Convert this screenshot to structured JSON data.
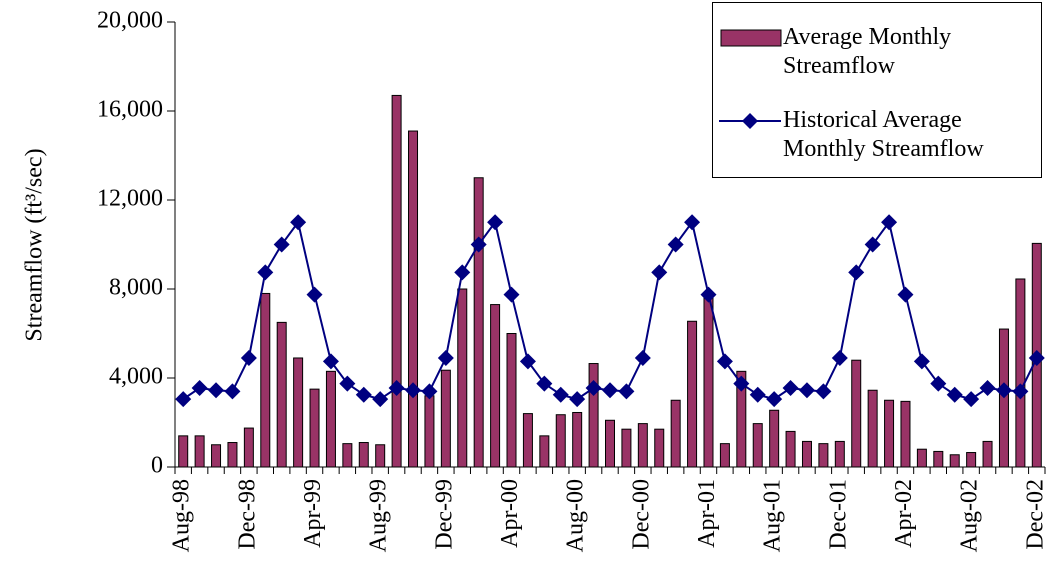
{
  "chart_data": {
    "type": "bar_line",
    "y_label": "Streamflow (ft³/sec)",
    "categories": [
      "Aug-98",
      null,
      null,
      null,
      "Dec-98",
      null,
      null,
      null,
      "Apr-99",
      null,
      null,
      null,
      "Aug-99",
      null,
      null,
      null,
      "Dec-99",
      null,
      null,
      null,
      "Apr-00",
      null,
      null,
      null,
      "Aug-00",
      null,
      null,
      null,
      "Dec-00",
      null,
      null,
      null,
      "Apr-01",
      null,
      null,
      null,
      "Aug-01",
      null,
      null,
      null,
      "Dec-01",
      null,
      null,
      null,
      "Apr-02",
      null,
      null,
      null,
      "Aug-02",
      null,
      null,
      null,
      "Dec-02"
    ],
    "series": [
      {
        "name": "Average Monthly Streamflow",
        "type": "bar",
        "color": "#993366",
        "values": [
          1400,
          1400,
          1000,
          1100,
          1750,
          7800,
          6500,
          4900,
          3500,
          4300,
          1050,
          1100,
          1000,
          16700,
          15100,
          3200,
          4350,
          8000,
          13000,
          7300,
          6000,
          2400,
          1400,
          2350,
          2450,
          4650,
          2100,
          1700,
          1950,
          1700,
          3000,
          6550,
          7800,
          1050,
          4300,
          1950,
          2550,
          1600,
          1150,
          1050,
          1150,
          4800,
          3450,
          3000,
          2950,
          800,
          700,
          550,
          650,
          1150,
          6200,
          8450,
          10050
        ]
      },
      {
        "name": "Historical Average Monthly Streamflow",
        "type": "line",
        "color": "#000080",
        "values": [
          3050,
          3550,
          3450,
          3400,
          4900,
          8750,
          10000,
          11000,
          7750,
          4750,
          3750,
          3250,
          3050,
          3550,
          3450,
          3400,
          4900,
          8750,
          10000,
          11000,
          7750,
          4750,
          3750,
          3250,
          3050,
          3550,
          3450,
          3400,
          4900,
          8750,
          10000,
          11000,
          7750,
          4750,
          3750,
          3250,
          3050,
          3550,
          3450,
          3400,
          4900,
          8750,
          10000,
          11000,
          7750,
          4750,
          3750,
          3250,
          3050,
          3550,
          3450,
          3400,
          4900
        ]
      }
    ],
    "ylim": [
      0,
      20000
    ],
    "yticks": [
      0,
      {
        "value": 4000,
        "label": "4,000"
      },
      {
        "value": 8000,
        "label": "8,000"
      },
      {
        "value": 12000,
        "label": "12,000"
      },
      {
        "value": 16000,
        "label": "16,000"
      },
      {
        "value": 20000,
        "label": "20,000"
      }
    ],
    "legend": "top-right"
  }
}
